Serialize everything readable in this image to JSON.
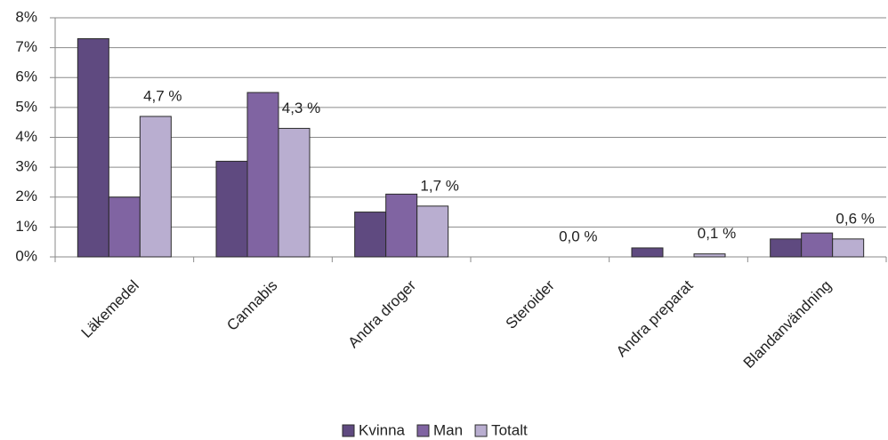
{
  "chart_data": {
    "type": "bar",
    "categories": [
      "Läkemedel",
      "Cannabis",
      "Andra droger",
      "Steroider",
      "Andra preparat",
      "Blandanvändning"
    ],
    "series": [
      {
        "name": "Kvinna",
        "color": "#5f4a80",
        "values": [
          7.3,
          3.2,
          1.5,
          0,
          0.3,
          0.6
        ]
      },
      {
        "name": "Man",
        "color": "#8064a2",
        "values": [
          2.0,
          5.5,
          2.1,
          0,
          0,
          0.8
        ]
      },
      {
        "name": "Totalt",
        "color": "#b9aed0",
        "values": [
          4.7,
          4.3,
          1.7,
          0,
          0.1,
          0.6
        ],
        "value_labels": [
          "4,7 %",
          "4,3 %",
          "1,7 %",
          "0,0 %",
          "0,1 %",
          "0,6 %"
        ]
      }
    ],
    "ylim": [
      0,
      8
    ],
    "yticks": [
      {
        "value": 0,
        "label": "0%"
      },
      {
        "value": 1,
        "label": "1%"
      },
      {
        "value": 2,
        "label": "2%"
      },
      {
        "value": 3,
        "label": "3%"
      },
      {
        "value": 4,
        "label": "4%"
      },
      {
        "value": 5,
        "label": "5%"
      },
      {
        "value": 6,
        "label": "6%"
      },
      {
        "value": 7,
        "label": "7%"
      },
      {
        "value": 8,
        "label": "8%"
      }
    ],
    "grid": true,
    "legend": "bottom"
  }
}
